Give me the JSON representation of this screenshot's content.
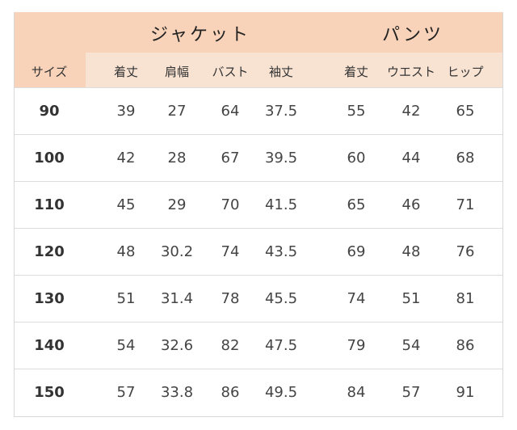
{
  "groups": {
    "jacket": "ジャケット",
    "pants": "パンツ"
  },
  "columns": [
    "サイズ",
    "着丈",
    "肩幅",
    "バスト",
    "袖丈",
    "着丈",
    "ウエスト",
    "ヒップ"
  ],
  "colors": {
    "header": "#f8d3b9",
    "subheader": "#f8e3d3"
  },
  "rows": [
    [
      "90",
      "39",
      "27",
      "64",
      "37.5",
      "55",
      "42",
      "65"
    ],
    [
      "100",
      "42",
      "28",
      "67",
      "39.5",
      "60",
      "44",
      "68"
    ],
    [
      "110",
      "45",
      "29",
      "70",
      "41.5",
      "65",
      "46",
      "71"
    ],
    [
      "120",
      "48",
      "30.2",
      "74",
      "43.5",
      "69",
      "48",
      "76"
    ],
    [
      "130",
      "51",
      "31.4",
      "78",
      "45.5",
      "74",
      "51",
      "81"
    ],
    [
      "140",
      "54",
      "32.6",
      "82",
      "47.5",
      "79",
      "54",
      "86"
    ],
    [
      "150",
      "57",
      "33.8",
      "86",
      "49.5",
      "84",
      "57",
      "91"
    ]
  ]
}
